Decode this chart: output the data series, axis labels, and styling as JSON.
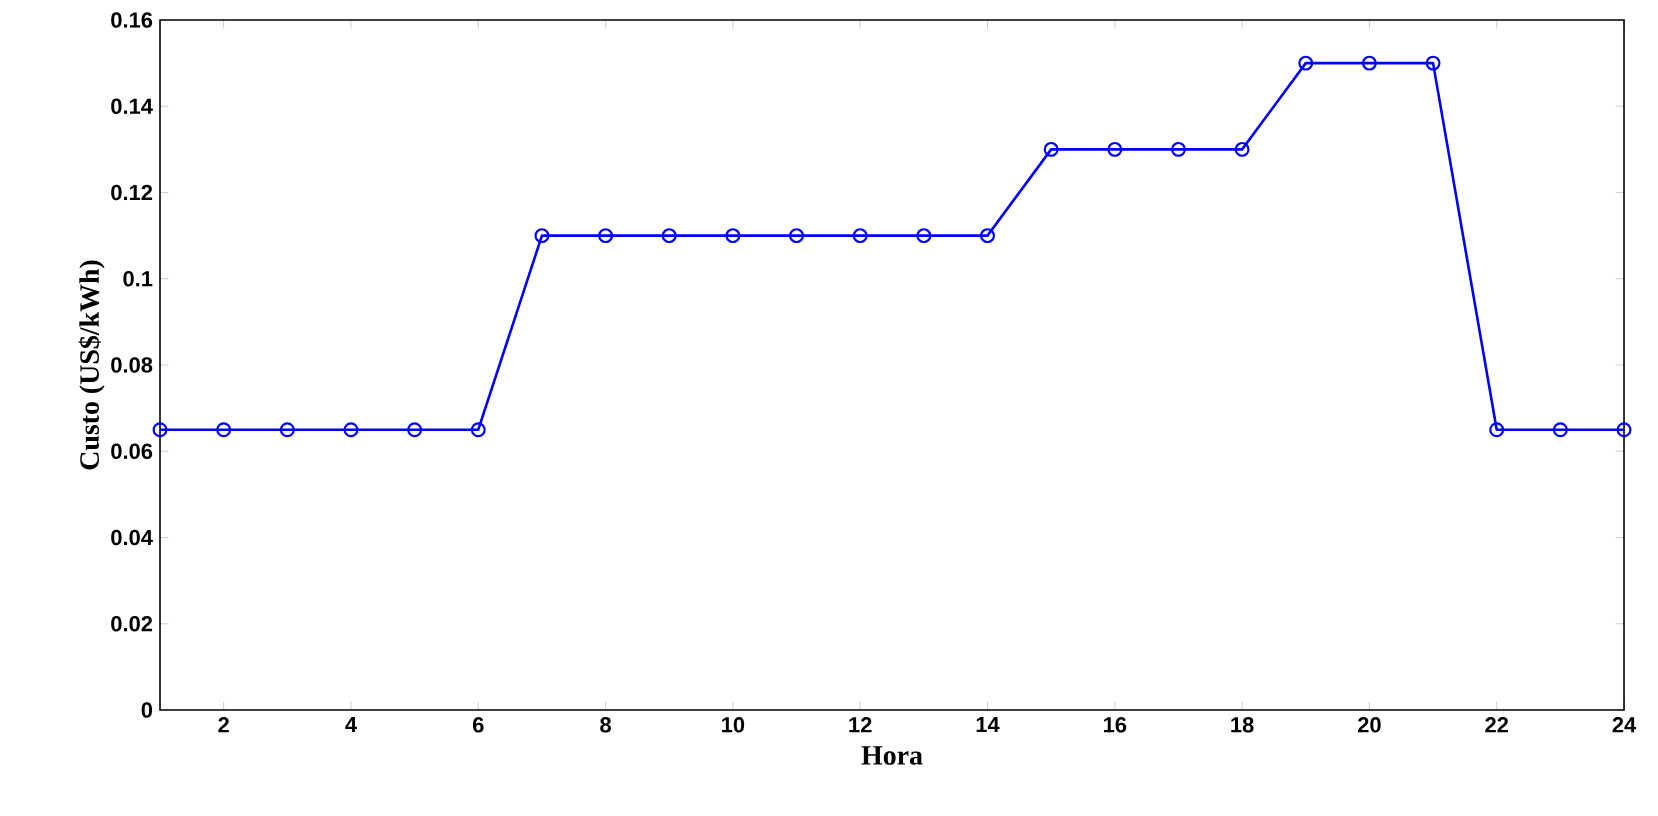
{
  "chart_data": {
    "type": "line",
    "xlabel": "Hora",
    "ylabel": "Custo (US$/kWh)",
    "x": [
      1,
      2,
      3,
      4,
      5,
      6,
      7,
      8,
      9,
      10,
      11,
      12,
      13,
      14,
      15,
      16,
      17,
      18,
      19,
      20,
      21,
      22,
      23,
      24
    ],
    "series": [
      {
        "color": "#0000ff",
        "values": [
          0.065,
          0.065,
          0.065,
          0.065,
          0.065,
          0.065,
          0.11,
          0.11,
          0.11,
          0.11,
          0.11,
          0.11,
          0.11,
          0.11,
          0.13,
          0.13,
          0.13,
          0.13,
          0.15,
          0.15,
          0.15,
          0.065,
          0.065,
          0.065
        ]
      }
    ],
    "xlim": [
      1,
      24
    ],
    "xticks": [
      2,
      4,
      6,
      8,
      10,
      12,
      14,
      16,
      18,
      20,
      22,
      24
    ],
    "ylim": [
      0,
      0.16
    ],
    "yticks": [
      0,
      0.02,
      0.04,
      0.06,
      0.08,
      0.1,
      0.12,
      0.14,
      0.16
    ],
    "marker": "circle",
    "line_style": "solid",
    "grid": false
  }
}
